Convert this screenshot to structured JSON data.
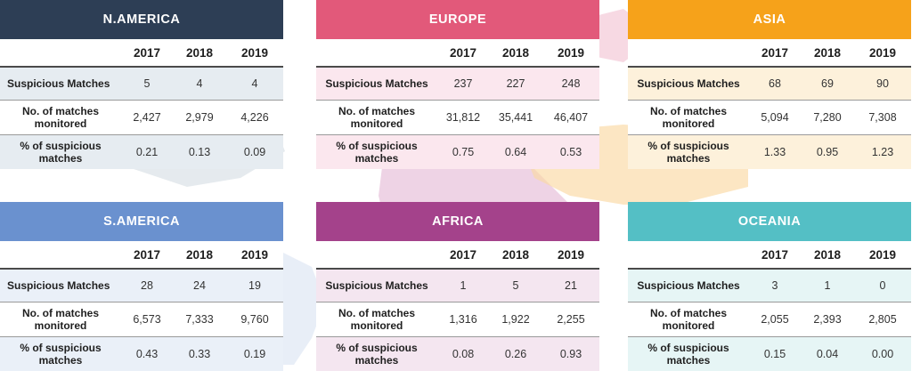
{
  "colors": {
    "n_america": "#2d3e55",
    "europe": "#e2597a",
    "asia": "#f6a21a",
    "s_america": "#6a91cf",
    "africa": "#a4428b",
    "oceania": "#54bfc5",
    "n_america_tint": "#e6ecf1",
    "europe_tint": "#fbe7ee",
    "asia_tint": "#fdf1db",
    "s_america_tint": "#eaf0f8",
    "africa_tint": "#f4e6f0",
    "oceania_tint": "#e6f5f5"
  },
  "row_labels": {
    "suspicious": "Suspicious Matches",
    "monitored": "No. of matches monitored",
    "percent": "% of suspicious matches"
  },
  "years": [
    "2017",
    "2018",
    "2019"
  ],
  "regions": {
    "n_america": {
      "name": "N.AMERICA",
      "suspicious": [
        "5",
        "4",
        "4"
      ],
      "monitored": [
        "2,427",
        "2,979",
        "4,226"
      ],
      "percent": [
        "0.21",
        "0.13",
        "0.09"
      ]
    },
    "europe": {
      "name": "EUROPE",
      "suspicious": [
        "237",
        "227",
        "248"
      ],
      "monitored": [
        "31,812",
        "35,441",
        "46,407"
      ],
      "percent": [
        "0.75",
        "0.64",
        "0.53"
      ]
    },
    "asia": {
      "name": "ASIA",
      "suspicious": [
        "68",
        "69",
        "90"
      ],
      "monitored": [
        "5,094",
        "7,280",
        "7,308"
      ],
      "percent": [
        "1.33",
        "0.95",
        "1.23"
      ]
    },
    "s_america": {
      "name": "S.AMERICA",
      "suspicious": [
        "28",
        "24",
        "19"
      ],
      "monitored": [
        "6,573",
        "7,333",
        "9,760"
      ],
      "percent": [
        "0.43",
        "0.33",
        "0.19"
      ]
    },
    "africa": {
      "name": "AFRICA",
      "suspicious": [
        "1",
        "5",
        "21"
      ],
      "monitored": [
        "1,316",
        "1,922",
        "2,255"
      ],
      "percent": [
        "0.08",
        "0.26",
        "0.93"
      ]
    },
    "oceania": {
      "name": "OCEANIA",
      "suspicious": [
        "3",
        "1",
        "0"
      ],
      "monitored": [
        "2,055",
        "2,393",
        "2,805"
      ],
      "percent": [
        "0.15",
        "0.04",
        "0.00"
      ]
    }
  }
}
